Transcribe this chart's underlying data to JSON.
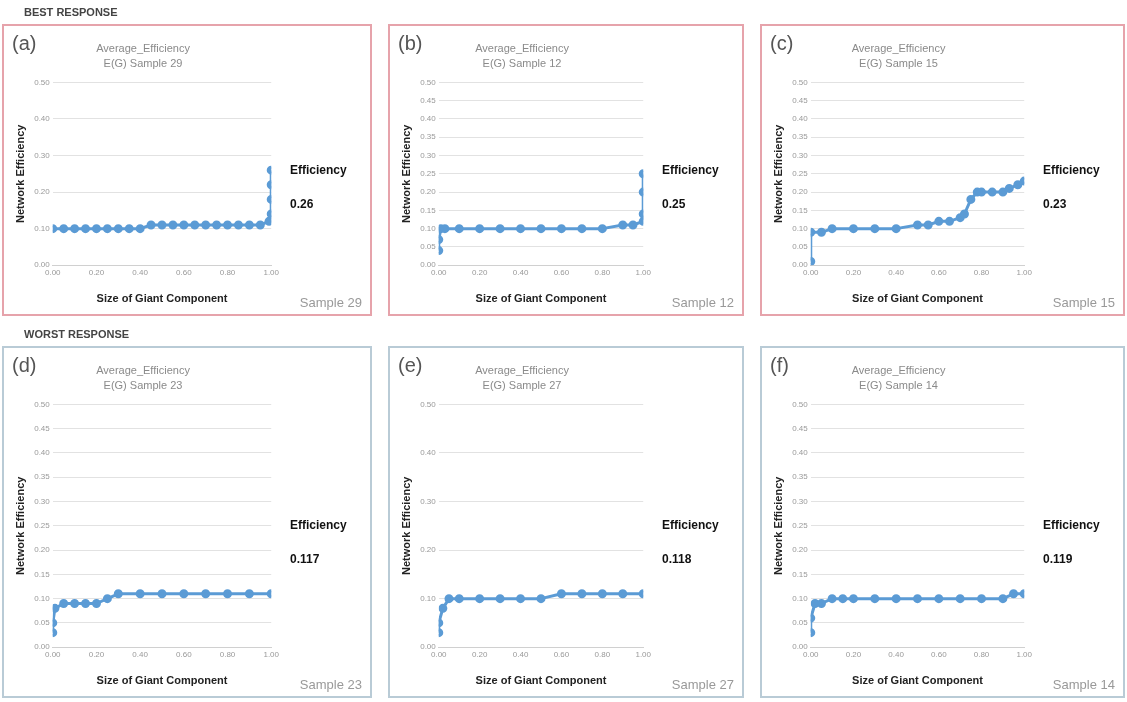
{
  "chart_data": [
    {
      "type": "line",
      "title": "Average_Efficiency",
      "subtitle": "E(G) Sample 29",
      "xlabel": "Size of Giant Component",
      "ylabel": "Network Efficiency",
      "color": "#5b9bd5",
      "marker": "circle",
      "grid": "y",
      "xlim": [
        0,
        1
      ],
      "xticks": [
        {
          "value": 0,
          "label": "0.00"
        },
        {
          "value": 0.2,
          "label": "0.20"
        },
        {
          "value": 0.4,
          "label": "0.40"
        },
        {
          "value": 0.6,
          "label": "0.60"
        },
        {
          "value": 0.8,
          "label": "0.80"
        },
        {
          "value": 1,
          "label": "1.00"
        }
      ],
      "ylim": [
        0,
        0.5
      ],
      "yticks": [
        {
          "value": 0,
          "label": "0.00"
        },
        {
          "value": 0.1,
          "label": "0.10"
        },
        {
          "value": 0.2,
          "label": "0.20"
        },
        {
          "value": 0.3,
          "label": "0.30"
        },
        {
          "value": 0.4,
          "label": "0.40"
        },
        {
          "value": 0.5,
          "label": "0.50"
        }
      ],
      "x": [
        0,
        0.05,
        0.1,
        0.15,
        0.2,
        0.25,
        0.3,
        0.35,
        0.4,
        0.45,
        0.5,
        0.55,
        0.6,
        0.65,
        0.7,
        0.75,
        0.8,
        0.85,
        0.9,
        0.95,
        0.99,
        1,
        1,
        1,
        1
      ],
      "values": [
        0.1,
        0.1,
        0.1,
        0.1,
        0.1,
        0.1,
        0.1,
        0.1,
        0.1,
        0.11,
        0.11,
        0.11,
        0.11,
        0.11,
        0.11,
        0.11,
        0.11,
        0.11,
        0.11,
        0.11,
        0.12,
        0.14,
        0.18,
        0.22,
        0.26
      ],
      "annotations": [
        "(a)",
        "Efficiency",
        "0.26",
        "Sample 29",
        "BEST RESPONSE"
      ]
    },
    {
      "type": "line",
      "title": "Average_Efficiency",
      "subtitle": "E(G) Sample 12",
      "xlabel": "Size of Giant Component",
      "ylabel": "Network Efficiency",
      "color": "#5b9bd5",
      "marker": "circle",
      "grid": "y",
      "xlim": [
        0,
        1
      ],
      "xticks": [
        {
          "value": 0,
          "label": "0.00"
        },
        {
          "value": 0.2,
          "label": "0.20"
        },
        {
          "value": 0.4,
          "label": "0.40"
        },
        {
          "value": 0.6,
          "label": "0.60"
        },
        {
          "value": 0.8,
          "label": "0.80"
        },
        {
          "value": 1,
          "label": "1.00"
        }
      ],
      "ylim": [
        0,
        0.5
      ],
      "yticks": [
        {
          "value": 0,
          "label": "0.00"
        },
        {
          "value": 0.05,
          "label": "0.05"
        },
        {
          "value": 0.1,
          "label": "0.10"
        },
        {
          "value": 0.15,
          "label": "0.15"
        },
        {
          "value": 0.2,
          "label": "0.20"
        },
        {
          "value": 0.25,
          "label": "0.25"
        },
        {
          "value": 0.3,
          "label": "0.30"
        },
        {
          "value": 0.35,
          "label": "0.35"
        },
        {
          "value": 0.4,
          "label": "0.40"
        },
        {
          "value": 0.45,
          "label": "0.45"
        },
        {
          "value": 0.5,
          "label": "0.50"
        }
      ],
      "x": [
        0,
        0,
        0.01,
        0.03,
        0.1,
        0.2,
        0.3,
        0.4,
        0.5,
        0.6,
        0.7,
        0.8,
        0.9,
        0.95,
        1,
        1,
        1,
        1
      ],
      "values": [
        0.04,
        0.07,
        0.1,
        0.1,
        0.1,
        0.1,
        0.1,
        0.1,
        0.1,
        0.1,
        0.1,
        0.1,
        0.11,
        0.11,
        0.12,
        0.14,
        0.2,
        0.25
      ],
      "annotations": [
        "(b)",
        "Efficiency",
        "0.25",
        "Sample 12"
      ]
    },
    {
      "type": "line",
      "title": "Average_Efficiency",
      "subtitle": "E(G) Sample 15",
      "xlabel": "Size of Giant Component",
      "ylabel": "Network Efficiency",
      "color": "#5b9bd5",
      "marker": "circle",
      "grid": "y",
      "xlim": [
        0,
        1
      ],
      "xticks": [
        {
          "value": 0,
          "label": "0.00"
        },
        {
          "value": 0.2,
          "label": "0.20"
        },
        {
          "value": 0.4,
          "label": "0.40"
        },
        {
          "value": 0.6,
          "label": "0.60"
        },
        {
          "value": 0.8,
          "label": "0.80"
        },
        {
          "value": 1,
          "label": "1.00"
        }
      ],
      "ylim": [
        0,
        0.5
      ],
      "yticks": [
        {
          "value": 0,
          "label": "0.00"
        },
        {
          "value": 0.05,
          "label": "0.05"
        },
        {
          "value": 0.1,
          "label": "0.10"
        },
        {
          "value": 0.15,
          "label": "0.15"
        },
        {
          "value": 0.2,
          "label": "0.20"
        },
        {
          "value": 0.25,
          "label": "0.25"
        },
        {
          "value": 0.3,
          "label": "0.30"
        },
        {
          "value": 0.35,
          "label": "0.35"
        },
        {
          "value": 0.4,
          "label": "0.40"
        },
        {
          "value": 0.45,
          "label": "0.45"
        },
        {
          "value": 0.5,
          "label": "0.50"
        }
      ],
      "x": [
        0,
        0,
        0.05,
        0.1,
        0.2,
        0.3,
        0.4,
        0.5,
        0.55,
        0.6,
        0.65,
        0.7,
        0.72,
        0.75,
        0.78,
        0.8,
        0.85,
        0.9,
        0.93,
        0.97,
        1
      ],
      "values": [
        0.01,
        0.09,
        0.09,
        0.1,
        0.1,
        0.1,
        0.1,
        0.11,
        0.11,
        0.12,
        0.12,
        0.13,
        0.14,
        0.18,
        0.2,
        0.2,
        0.2,
        0.2,
        0.21,
        0.22,
        0.23
      ],
      "annotations": [
        "(c)",
        "Efficiency",
        "0.23",
        "Sample 15"
      ]
    },
    {
      "type": "line",
      "title": "Average_Efficiency",
      "subtitle": "E(G) Sample 23",
      "xlabel": "Size of Giant Component",
      "ylabel": "Network Efficiency",
      "color": "#5b9bd5",
      "marker": "circle",
      "grid": "y",
      "xlim": [
        0,
        1
      ],
      "xticks": [
        {
          "value": 0,
          "label": "0.00"
        },
        {
          "value": 0.2,
          "label": "0.20"
        },
        {
          "value": 0.4,
          "label": "0.40"
        },
        {
          "value": 0.6,
          "label": "0.60"
        },
        {
          "value": 0.8,
          "label": "0.80"
        },
        {
          "value": 1,
          "label": "1.00"
        }
      ],
      "ylim": [
        0,
        0.5
      ],
      "yticks": [
        {
          "value": 0,
          "label": "0.00"
        },
        {
          "value": 0.05,
          "label": "0.05"
        },
        {
          "value": 0.1,
          "label": "0.10"
        },
        {
          "value": 0.15,
          "label": "0.15"
        },
        {
          "value": 0.2,
          "label": "0.20"
        },
        {
          "value": 0.25,
          "label": "0.25"
        },
        {
          "value": 0.3,
          "label": "0.30"
        },
        {
          "value": 0.35,
          "label": "0.35"
        },
        {
          "value": 0.4,
          "label": "0.40"
        },
        {
          "value": 0.45,
          "label": "0.45"
        },
        {
          "value": 0.5,
          "label": "0.50"
        }
      ],
      "x": [
        0,
        0,
        0.01,
        0.05,
        0.1,
        0.15,
        0.2,
        0.25,
        0.3,
        0.4,
        0.5,
        0.6,
        0.7,
        0.8,
        0.9,
        1
      ],
      "values": [
        0.03,
        0.05,
        0.08,
        0.09,
        0.09,
        0.09,
        0.09,
        0.1,
        0.11,
        0.11,
        0.11,
        0.11,
        0.11,
        0.11,
        0.11,
        0.11
      ],
      "annotations": [
        "(d)",
        "Efficiency",
        "0.117",
        "Sample 23",
        "WORST RESPONSE"
      ]
    },
    {
      "type": "line",
      "title": "Average_Efficiency",
      "subtitle": "E(G) Sample 27",
      "xlabel": "Size of Giant Component",
      "ylabel": "Network Efficiency",
      "color": "#5b9bd5",
      "marker": "circle",
      "grid": "y",
      "xlim": [
        0,
        1
      ],
      "xticks": [
        {
          "value": 0,
          "label": "0.00"
        },
        {
          "value": 0.2,
          "label": "0.20"
        },
        {
          "value": 0.4,
          "label": "0.40"
        },
        {
          "value": 0.6,
          "label": "0.60"
        },
        {
          "value": 0.8,
          "label": "0.80"
        },
        {
          "value": 1,
          "label": "1.00"
        }
      ],
      "ylim": [
        0,
        0.5
      ],
      "yticks": [
        {
          "value": 0,
          "label": "0.00"
        },
        {
          "value": 0.1,
          "label": "0.10"
        },
        {
          "value": 0.2,
          "label": "0.20"
        },
        {
          "value": 0.3,
          "label": "0.30"
        },
        {
          "value": 0.4,
          "label": "0.40"
        },
        {
          "value": 0.5,
          "label": "0.50"
        }
      ],
      "x": [
        0,
        0,
        0.02,
        0.05,
        0.1,
        0.2,
        0.3,
        0.4,
        0.5,
        0.6,
        0.7,
        0.8,
        0.9,
        1
      ],
      "values": [
        0.03,
        0.05,
        0.08,
        0.1,
        0.1,
        0.1,
        0.1,
        0.1,
        0.1,
        0.11,
        0.11,
        0.11,
        0.11,
        0.11
      ],
      "annotations": [
        "(e)",
        "Efficiency",
        "0.118",
        "Sample 27"
      ]
    },
    {
      "type": "line",
      "title": "Average_Efficiency",
      "subtitle": "E(G) Sample 14",
      "xlabel": "Size of Giant Component",
      "ylabel": "Network Efficiency",
      "color": "#5b9bd5",
      "marker": "circle",
      "grid": "y",
      "xlim": [
        0,
        1
      ],
      "xticks": [
        {
          "value": 0,
          "label": "0.00"
        },
        {
          "value": 0.2,
          "label": "0.20"
        },
        {
          "value": 0.4,
          "label": "0.40"
        },
        {
          "value": 0.6,
          "label": "0.60"
        },
        {
          "value": 0.8,
          "label": "0.80"
        },
        {
          "value": 1,
          "label": "1.00"
        }
      ],
      "ylim": [
        0,
        0.5
      ],
      "yticks": [
        {
          "value": 0,
          "label": "0.00"
        },
        {
          "value": 0.05,
          "label": "0.05"
        },
        {
          "value": 0.1,
          "label": "0.10"
        },
        {
          "value": 0.15,
          "label": "0.15"
        },
        {
          "value": 0.2,
          "label": "0.20"
        },
        {
          "value": 0.25,
          "label": "0.25"
        },
        {
          "value": 0.3,
          "label": "0.30"
        },
        {
          "value": 0.35,
          "label": "0.35"
        },
        {
          "value": 0.4,
          "label": "0.40"
        },
        {
          "value": 0.45,
          "label": "0.45"
        },
        {
          "value": 0.5,
          "label": "0.50"
        }
      ],
      "x": [
        0,
        0,
        0.02,
        0.05,
        0.1,
        0.15,
        0.2,
        0.3,
        0.4,
        0.5,
        0.6,
        0.7,
        0.8,
        0.9,
        0.95,
        1
      ],
      "values": [
        0.03,
        0.06,
        0.09,
        0.09,
        0.1,
        0.1,
        0.1,
        0.1,
        0.1,
        0.1,
        0.1,
        0.1,
        0.1,
        0.1,
        0.11,
        0.11
      ],
      "annotations": [
        "(f)",
        "Efficiency",
        "0.119",
        "Sample 14"
      ]
    }
  ]
}
